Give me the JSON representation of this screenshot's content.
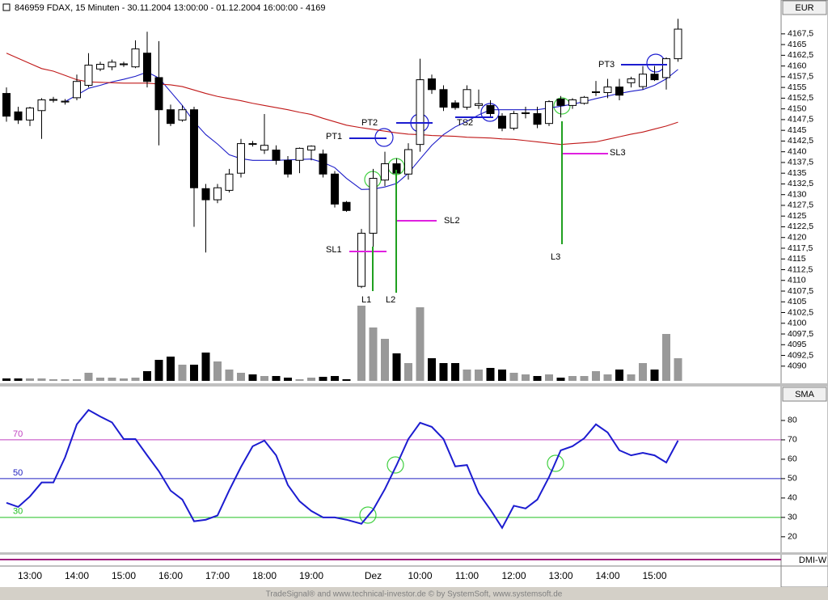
{
  "window_title": "846959  FDAX, 15 Minuten - 30.11.2004 13:00:00 - 01.12.2004 16:00:00 - 4169",
  "footer": "TradeSignal® and www.technical-investor.de © by SystemSoft, www.systemsoft.de",
  "lower_label": "DMI-W",
  "chart_data": [
    {
      "type": "candlestick",
      "unit": "EUR",
      "categories": [
        null,
        null,
        "13:00",
        null,
        null,
        null,
        "14:00",
        null,
        null,
        null,
        "15:00",
        null,
        null,
        null,
        "16:00",
        null,
        null,
        null,
        "17:00",
        null,
        null,
        null,
        "18:00",
        null,
        null,
        null,
        "19:00",
        null,
        null,
        null,
        null,
        "Dez",
        null,
        null,
        null,
        "10:00",
        null,
        null,
        null,
        "11:00",
        null,
        null,
        null,
        "12:00",
        null,
        null,
        null,
        "13:00",
        null,
        null,
        null,
        "14:00",
        null,
        null,
        null,
        "15:00",
        null,
        null
      ],
      "open": [
        4153.6,
        4149.3,
        4147.4,
        4149.6,
        4152.0,
        4151.6,
        4152.6,
        4155.5,
        4159.3,
        4159.8,
        4160.3,
        4159.8,
        4163.0,
        4157.3,
        4149.8,
        4147.4,
        4149.8,
        4131.4,
        4128.8,
        4131.0,
        4135.0,
        4141.9,
        4140.4,
        4140.4,
        4138.0,
        4138.0,
        4140.4,
        4139.5,
        4134.8,
        4128.2,
        4108.6,
        4121.0,
        4133.4,
        4137.2,
        4134.8,
        4141.7,
        4157.0,
        4154.5,
        4151.4,
        4150.4,
        4150.8,
        4150.8,
        4148.3,
        4145.5,
        4148.9,
        4148.9,
        4146.6,
        4152.3,
        4150.8,
        4151.3,
        4153.8,
        4153.8,
        4155.1,
        4156.1,
        4155.2,
        4158.1,
        4157.3,
        4161.7
      ],
      "high": [
        4155.0,
        4150.5,
        4150.5,
        4152.5,
        4152.8,
        4152.3,
        4158.0,
        4163.0,
        4161.0,
        4161.5,
        4161.0,
        4166.0,
        4168.0,
        4165.8,
        4151.0,
        4150.8,
        4150.5,
        4132.5,
        4132.5,
        4136.0,
        4143.0,
        4142.5,
        4148.8,
        4141.5,
        4139.0,
        4141.0,
        4141.5,
        4140.5,
        4135.5,
        4128.5,
        4122.0,
        4136.0,
        4140.0,
        4138.5,
        4142.0,
        4161.7,
        4158.0,
        4155.5,
        4152.0,
        4155.5,
        4154.5,
        4152.0,
        4149.0,
        4149.5,
        4150.5,
        4150.5,
        4152.0,
        4153.0,
        4152.5,
        4153.0,
        4156.5,
        4157.0,
        4157.0,
        4157.5,
        4160.0,
        4160.0,
        4162.0,
        4171.0
      ],
      "low": [
        4147.0,
        4146.5,
        4146.0,
        4143.0,
        4151.5,
        4151.0,
        4152.0,
        4155.0,
        4158.8,
        4159.0,
        4159.8,
        4159.5,
        4155.0,
        4141.5,
        4146.0,
        4147.0,
        4122.5,
        4116.5,
        4128.0,
        4130.5,
        4134.0,
        4141.2,
        4139.5,
        4137.0,
        4134.0,
        4135.0,
        4138.0,
        4134.0,
        4127.0,
        4126.0,
        4108.2,
        4112.7,
        4132.0,
        4134.5,
        4133.5,
        4140.0,
        4153.5,
        4149.5,
        4149.8,
        4149.8,
        4150.0,
        4148.0,
        4144.8,
        4145.0,
        4147.8,
        4145.5,
        4146.0,
        4148.0,
        4150.0,
        4151.0,
        4153.0,
        4152.5,
        4152.0,
        4155.0,
        4154.5,
        4156.5,
        4154.5,
        4161.0
      ],
      "close": [
        4148.3,
        4147.4,
        4150.2,
        4152.1,
        4152.2,
        4151.8,
        4156.4,
        4160.2,
        4160.4,
        4160.9,
        4160.5,
        4164.0,
        4156.4,
        4149.8,
        4146.6,
        4149.8,
        4131.6,
        4128.8,
        4131.6,
        4134.8,
        4141.9,
        4141.8,
        4141.5,
        4138.0,
        4134.8,
        4140.8,
        4141.3,
        4134.8,
        4127.8,
        4126.3,
        4121.0,
        4133.8,
        4137.2,
        4135.0,
        4140.5,
        4156.8,
        4154.5,
        4150.4,
        4150.3,
        4154.5,
        4151.2,
        4148.9,
        4145.5,
        4148.9,
        4149.1,
        4146.4,
        4151.7,
        4150.8,
        4152.1,
        4152.7,
        4154.0,
        4155.1,
        4153.2,
        4157.0,
        4158.1,
        4156.8,
        4161.7,
        4168.6
      ],
      "up_color": "#ffffff",
      "down_color": "#000000",
      "volume": [
        3,
        3,
        3,
        3,
        2,
        2,
        2,
        10,
        4,
        4,
        3,
        4,
        12,
        26,
        30,
        20,
        20,
        35,
        24,
        14,
        10,
        8,
        6,
        6,
        4,
        2,
        4,
        5,
        6,
        2,
        93,
        66,
        52,
        34,
        22,
        91,
        28,
        22,
        22,
        14,
        14,
        16,
        14,
        10,
        8,
        6,
        8,
        4,
        6,
        6,
        12,
        8,
        14,
        8,
        22,
        14,
        58,
        28
      ],
      "volume_up_color": "#999999",
      "volume_down_color": "#000000",
      "lines": [
        {
          "color": "#1c1cc8",
          "values": [
            null,
            null,
            null,
            null,
            null,
            4151.7,
            4153.2,
            4154.8,
            4155.5,
            4156.3,
            4156.9,
            4157.6,
            4158.6,
            4157.2,
            4154.0,
            4150.8,
            4147.0,
            4144.0,
            4141.8,
            4139.3,
            4138.4,
            4138.0,
            4138.0,
            4138.0,
            4138.1,
            4138.2,
            4138.3,
            4137.5,
            4136.3,
            4133.8,
            4131.2,
            4131.3,
            4131.8,
            4132.6,
            4135.0,
            4138.3,
            4141.5,
            4144.0,
            4145.8,
            4147.1,
            4148.6,
            4149.8,
            4149.8,
            4149.8,
            4149.8,
            4149.8,
            4150.2,
            4150.6,
            4151.1,
            4151.7,
            4152.4,
            4153.0,
            4153.6,
            4154.1,
            4154.5,
            4155.5,
            4157.0,
            4159.2
          ]
        },
        {
          "color": "#c01818",
          "values": [
            4163.0,
            4161.8,
            4160.6,
            4159.4,
            4158.8,
            4157.8,
            4156.8,
            4156.3,
            4156.2,
            4156.1,
            4156.0,
            4156.0,
            4156.0,
            4155.8,
            4155.6,
            4155.2,
            4154.4,
            4153.6,
            4152.9,
            4152.4,
            4151.9,
            4151.3,
            4150.8,
            4150.3,
            4149.8,
            4149.2,
            4148.7,
            4147.8,
            4147.0,
            4146.2,
            4145.6,
            4145.2,
            4144.8,
            4144.4,
            4144.1,
            4144.0,
            4143.8,
            4143.7,
            4143.6,
            4143.4,
            4143.3,
            4143.2,
            4143.0,
            4142.9,
            4142.6,
            4142.3,
            4142.0,
            4141.7,
            4141.9,
            4142.1,
            4142.3,
            4142.9,
            4143.5,
            4144.1,
            4144.6,
            4145.3,
            4146.0,
            4146.9
          ]
        }
      ],
      "ylim": [
        4086,
        4172
      ],
      "yticks": [
        4090,
        {
          "value": 4092.5,
          "label": "4092,5"
        },
        4095,
        {
          "value": 4097.5,
          "label": "4097,5"
        },
        4100,
        {
          "value": 4102.5,
          "label": "4102,5"
        },
        4105,
        {
          "value": 4107.5,
          "label": "4107,5"
        },
        4110,
        {
          "value": 4112.5,
          "label": "4112,5"
        },
        4115,
        {
          "value": 4117.5,
          "label": "4117,5"
        },
        4120,
        {
          "value": 4122.5,
          "label": "4122,5"
        },
        4125,
        {
          "value": 4127.5,
          "label": "4127,5"
        },
        4130,
        {
          "value": 4132.5,
          "label": "4132,5"
        },
        4135,
        {
          "value": 4137.5,
          "label": "4137,5"
        },
        4140,
        {
          "value": 4142.5,
          "label": "4142,5"
        },
        4145,
        {
          "value": 4147.5,
          "label": "4147,5"
        },
        4150,
        {
          "value": 4152.5,
          "label": "4152,5"
        },
        4155,
        {
          "value": 4157.5,
          "label": "4157,5"
        },
        4160,
        {
          "value": 4162.5,
          "label": "4162,5"
        },
        4165,
        {
          "value": 4167.5,
          "label": "4167,5"
        }
      ],
      "annotations": [
        "PT1",
        "PT2",
        "TS2",
        "PT3",
        "SL1",
        "SL2",
        "SL3",
        "L1",
        "L2",
        "L3"
      ]
    },
    {
      "type": "line",
      "label": "SMA",
      "color": "#1c1cd0",
      "values": [
        37.5,
        35.4,
        40.8,
        48,
        48,
        61,
        78,
        85.4,
        82,
        79,
        70.4,
        70.4,
        62,
        53.8,
        43.8,
        39.2,
        28,
        28.8,
        31,
        44,
        56,
        66.7,
        69.6,
        62,
        46.7,
        38.3,
        33.3,
        30,
        30,
        28.8,
        26.7,
        34,
        44.6,
        57,
        70.4,
        78.8,
        76.7,
        70.4,
        56.3,
        57,
        42.5,
        34,
        24.6,
        36,
        34.6,
        39.2,
        50.8,
        64.6,
        66.7,
        70.8,
        78,
        73.8,
        64.6,
        62,
        63.3,
        62,
        58.3,
        69.6
      ],
      "ylim": [
        12,
        97.5
      ],
      "yticks": [
        20,
        30,
        40,
        50,
        60,
        70,
        80
      ],
      "levels": [
        70,
        50,
        30
      ],
      "level_colors": [
        "#c040c0",
        "#2020c0",
        "#20c020"
      ]
    }
  ]
}
